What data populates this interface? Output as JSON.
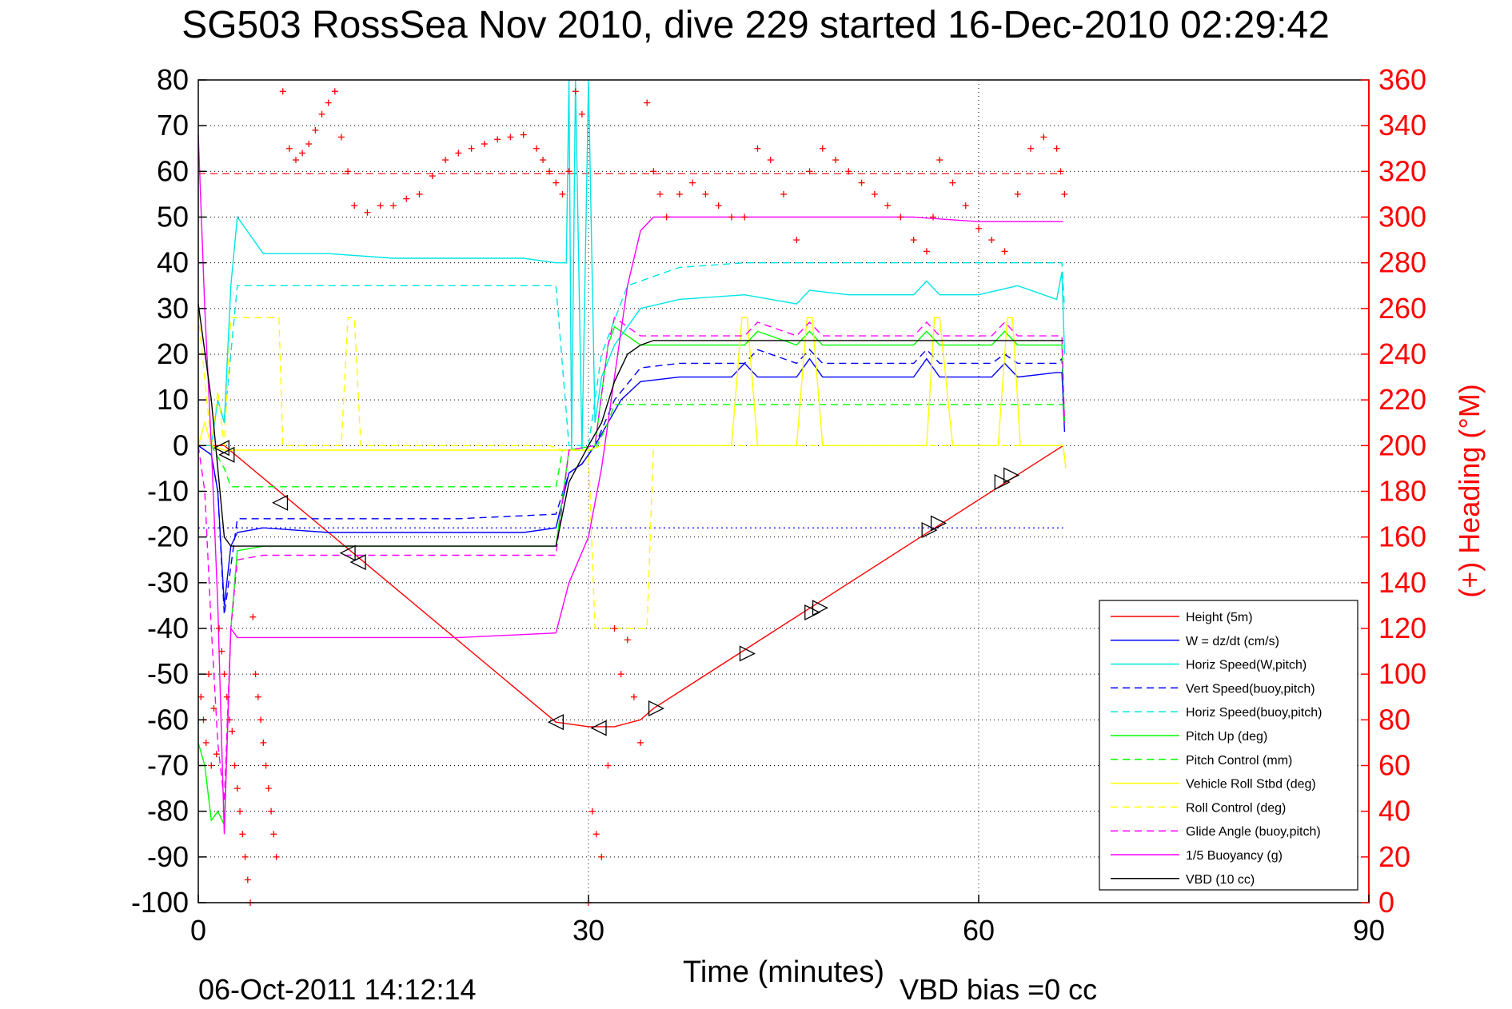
{
  "chart_data": {
    "type": "line",
    "title": "SG503 RossSea Nov 2010, dive 229 started 16-Dec-2010 02:29:42",
    "xlabel": "Time (minutes)",
    "ylabel": "",
    "y2label": "(+) Heading (°M)",
    "xlim": [
      0,
      90
    ],
    "ylim": [
      -100,
      80
    ],
    "y2lim": [
      0,
      360
    ],
    "xticks": [
      "0",
      "30",
      "60",
      "90"
    ],
    "yticks": [
      "80",
      "70",
      "60",
      "50",
      "40",
      "30",
      "20",
      "10",
      "0",
      "-10",
      "-20",
      "-30",
      "-40",
      "-50",
      "-60",
      "-70",
      "-80",
      "-90",
      "-100"
    ],
    "y2ticks": [
      "360",
      "340",
      "320",
      "300",
      "280",
      "260",
      "240",
      "220",
      "200",
      "180",
      "160",
      "140",
      "120",
      "100",
      "80",
      "60",
      "40",
      "20",
      "0"
    ],
    "grid": true,
    "legend_position": "bottom-right",
    "footer_date": "06-Oct-2011 14:12:14",
    "footer_note": "VBD bias =0 cc",
    "series": [
      {
        "name": "Height (5m)",
        "color": "#ff0000",
        "dash": "solid",
        "x": [
          0,
          2,
          27.5,
          30,
          32,
          34,
          35,
          66.5
        ],
        "y": [
          0,
          0,
          -60.5,
          -61.5,
          -61.5,
          -60,
          -57.5,
          0
        ]
      },
      {
        "name": "W = dz/dt (cm/s)",
        "color": "#0000ff",
        "dash": "solid",
        "x": [
          0,
          1,
          1.5,
          2,
          2.5,
          3,
          5,
          10,
          15,
          20,
          25,
          27.5,
          28.5,
          29.5,
          30.5,
          31.5,
          32.5,
          34,
          37,
          41,
          42,
          43,
          46,
          47,
          48,
          55,
          56,
          57,
          61,
          62,
          63,
          66,
          66.4,
          66.6
        ],
        "y": [
          0,
          -2,
          -10,
          -35,
          -22,
          -19,
          -18,
          -19,
          -19,
          -19,
          -19,
          -18,
          -6,
          -4,
          0,
          5,
          10,
          14,
          15,
          15,
          18,
          15,
          15,
          19,
          15,
          15,
          19,
          15,
          15,
          18,
          15,
          16,
          16,
          3
        ]
      },
      {
        "name": "Horiz Speed(W,pitch)",
        "color": "#00e5e5",
        "dash": "solid",
        "x": [
          0,
          1,
          1.5,
          2,
          2.5,
          3,
          5,
          10,
          15,
          20,
          25,
          27.5,
          28.3,
          28.5,
          28.7,
          29,
          29.5,
          30,
          30.5,
          31,
          32,
          34,
          37,
          42,
          46,
          47,
          50,
          55,
          56,
          57,
          60,
          63,
          66,
          66.4,
          66.6
        ],
        "y": [
          0,
          0,
          10,
          5,
          35,
          50,
          42,
          42,
          41,
          41,
          41,
          40,
          40,
          90,
          -1,
          90,
          -1,
          90,
          5,
          15,
          22,
          30,
          32,
          33,
          31,
          34,
          33,
          33,
          36,
          33,
          33,
          35,
          32,
          38,
          20
        ]
      },
      {
        "name": "Vert Speed(buoy,pitch)",
        "color": "#0000ff",
        "dash": "dash",
        "x": [
          0,
          1,
          1.5,
          2,
          3,
          10,
          20,
          27.5,
          28.5,
          29.5,
          30.5,
          32,
          34,
          37,
          42,
          43,
          46,
          47,
          48,
          55,
          56,
          57,
          61,
          62,
          63,
          66,
          66.4,
          66.6
        ],
        "y": [
          0,
          -2,
          -10,
          -37,
          -16,
          -16,
          -16,
          -15,
          -6,
          -4,
          0,
          10,
          17,
          18,
          18,
          21,
          18,
          21,
          18,
          18,
          21,
          18,
          18,
          20,
          18,
          18,
          19,
          5
        ]
      },
      {
        "name": "Horiz Speed(buoy,pitch)",
        "color": "#00e5e5",
        "dash": "dash",
        "x": [
          0,
          1,
          1.5,
          2,
          3,
          10,
          20,
          27.5,
          28.5,
          30,
          31,
          33,
          35,
          37,
          42,
          45,
          55,
          60,
          65,
          66.4,
          66.6
        ],
        "y": [
          0,
          0,
          10,
          5,
          35,
          35,
          35,
          35,
          0,
          0,
          20,
          35,
          37,
          39,
          40,
          40,
          40,
          40,
          40,
          40,
          30
        ]
      },
      {
        "name": "Pitch Up (deg)",
        "color": "#00ff00",
        "dash": "solid",
        "x": [
          0,
          0.5,
          1,
          1.5,
          2,
          2.5,
          3,
          5,
          10,
          20,
          27.5,
          28.5,
          30.5,
          31.5,
          32,
          34,
          42,
          43,
          46,
          47,
          48,
          55,
          56,
          57,
          61,
          62,
          63,
          66.4,
          66.6
        ],
        "y": [
          -65,
          -70,
          -82,
          -80,
          -83,
          -40,
          -23,
          -22,
          -22,
          -22,
          -22,
          -1,
          0,
          22,
          26,
          22,
          22,
          25,
          22,
          25,
          22,
          22,
          25,
          22,
          22,
          25,
          22,
          22,
          5
        ]
      },
      {
        "name": "Pitch Control (mm)",
        "color": "#00ff00",
        "dash": "dash",
        "x": [
          0,
          1,
          2,
          2.5,
          27.5,
          28,
          30.5,
          31.5,
          32,
          35,
          66.5
        ],
        "y": [
          0,
          0,
          -5,
          -9,
          -9,
          -1,
          -1,
          5,
          9,
          9,
          9
        ]
      },
      {
        "name": "Vehicle Roll Stbd (deg)",
        "color": "#ffff00",
        "dash": "solid",
        "x": [
          0,
          0.5,
          1,
          2,
          3,
          5,
          10,
          20,
          27.5,
          30,
          31,
          35,
          41,
          41.8,
          42.2,
          43,
          46,
          46.8,
          47.2,
          48,
          56,
          56.6,
          57,
          58,
          61.5,
          62.2,
          62.6,
          63.2,
          66.5,
          66.7
        ],
        "y": [
          0,
          5,
          0,
          -1,
          -1,
          -1,
          -1,
          -1,
          -1,
          -1,
          0,
          0,
          0,
          28,
          28,
          0,
          0,
          28,
          28,
          0,
          0,
          28,
          28,
          0,
          0,
          28,
          28,
          0,
          0,
          -5
        ]
      },
      {
        "name": "Roll Control (deg)",
        "color": "#ffff00",
        "dash": "dash",
        "x": [
          0,
          1,
          1.5,
          2,
          2.5,
          6.2,
          6.5,
          11,
          11.5,
          12,
          12.5,
          27,
          28,
          30,
          30.5,
          34.5,
          35,
          66.5
        ],
        "y": [
          29,
          0,
          12,
          0,
          28,
          28,
          0,
          0,
          28,
          28,
          0,
          0,
          -1,
          -1,
          -40,
          -40,
          0,
          0
        ]
      },
      {
        "name": "Glide Angle (buoy,pitch)",
        "color": "#ff00ff",
        "dash": "dash",
        "x": [
          0,
          0.5,
          1,
          1.5,
          2,
          2.5,
          3,
          5,
          10,
          20,
          27.5,
          28.5,
          30.5,
          31.5,
          32,
          34,
          42,
          43,
          46,
          47,
          48,
          55,
          56,
          57,
          61,
          62,
          63,
          66.4,
          66.6
        ],
        "y": [
          0,
          -10,
          -40,
          -65,
          -78,
          -40,
          -25,
          -24,
          -24,
          -24,
          -24,
          -1,
          0,
          22,
          28,
          24,
          24,
          27,
          24,
          27,
          24,
          24,
          27,
          24,
          24,
          27,
          24,
          24,
          5
        ]
      },
      {
        "name": "1/5 Buoyancy (g)",
        "color": "#ff00ff",
        "dash": "solid",
        "x": [
          0,
          0.5,
          1,
          1.5,
          2,
          2.5,
          3,
          10,
          20,
          27.5,
          28.5,
          30,
          31,
          32,
          33,
          34,
          35,
          45,
          55,
          60,
          66.5
        ],
        "y": [
          68,
          30,
          0,
          -35,
          -85,
          -40,
          -42,
          -42,
          -42,
          -41,
          -30,
          -20,
          -5,
          15,
          35,
          47,
          50,
          50,
          50,
          49,
          49
        ]
      },
      {
        "name": "VBD (10 cc)",
        "color": "#000000",
        "dash": "solid",
        "x": [
          0,
          1,
          2,
          2.5,
          27.5,
          28.5,
          30,
          31,
          32,
          33,
          34,
          35,
          66.5
        ],
        "y": [
          31,
          10,
          -20,
          -22,
          -22,
          -8,
          0,
          5,
          14,
          20,
          22,
          23,
          23
        ]
      }
    ],
    "reference_lines": [
      {
        "color": "#ff0000",
        "dash": "dash",
        "y2": 319
      },
      {
        "color": "#0000ff",
        "dash": "dot",
        "y": -18
      }
    ],
    "heading_points_y2": {
      "color": "#ff0000",
      "marker": "+",
      "x": [
        0.2,
        0.4,
        0.6,
        0.8,
        1.0,
        1.2,
        1.4,
        1.6,
        1.8,
        2.0,
        2.2,
        2.4,
        2.6,
        2.8,
        3.0,
        3.2,
        3.4,
        3.6,
        3.8,
        4.0,
        4.2,
        4.4,
        4.6,
        4.8,
        5.0,
        5.2,
        5.4,
        5.6,
        5.8,
        6.0,
        6.5,
        7.0,
        7.5,
        8.0,
        8.5,
        9.0,
        9.5,
        10.0,
        10.5,
        11.0,
        11.5,
        12.0,
        13,
        14,
        15,
        16,
        17,
        18,
        19,
        20,
        21,
        22,
        23,
        24,
        25,
        26,
        26.5,
        27,
        27.5,
        28,
        28.5,
        29,
        29.5,
        30,
        30.3,
        30.6,
        31,
        31.5,
        32,
        32.5,
        33,
        33.5,
        34,
        34.5,
        35,
        35.5,
        36,
        37,
        38,
        39,
        40,
        41,
        42,
        43,
        44,
        45,
        46,
        47,
        48,
        49,
        50,
        51,
        52,
        53,
        54,
        55,
        56,
        56.5,
        57,
        58,
        59,
        60,
        61,
        62,
        63,
        64,
        65,
        66,
        66.3,
        66.6
      ],
      "y": [
        90,
        80,
        70,
        100,
        60,
        85,
        65,
        120,
        110,
        100,
        90,
        80,
        75,
        60,
        50,
        40,
        30,
        20,
        10,
        0,
        125,
        100,
        90,
        80,
        70,
        60,
        50,
        40,
        30,
        20,
        355,
        330,
        325,
        328,
        332,
        338,
        345,
        350,
        355,
        335,
        320,
        305,
        302,
        305,
        305,
        308,
        310,
        318,
        325,
        328,
        330,
        332,
        334,
        335,
        336,
        330,
        325,
        320,
        315,
        310,
        320,
        355,
        345,
        0,
        40,
        30,
        20,
        60,
        120,
        100,
        115,
        90,
        70,
        350,
        320,
        310,
        300,
        310,
        315,
        310,
        305,
        300,
        300,
        330,
        325,
        310,
        290,
        320,
        330,
        325,
        320,
        315,
        310,
        305,
        300,
        290,
        285,
        300,
        325,
        315,
        305,
        295,
        290,
        285,
        310,
        330,
        335,
        330,
        320,
        310
      ]
    },
    "triangle_markers": [
      {
        "x": 1.8,
        "y": -0.5,
        "dir": "left"
      },
      {
        "x": 2.2,
        "y": -2,
        "dir": "left"
      },
      {
        "x": 6.3,
        "y": -12.5,
        "dir": "left"
      },
      {
        "x": 11.5,
        "y": -23.5,
        "dir": "left"
      },
      {
        "x": 12.3,
        "y": -25.5,
        "dir": "left"
      },
      {
        "x": 27.5,
        "y": -60.5,
        "dir": "left"
      },
      {
        "x": 30.8,
        "y": -61.8,
        "dir": "left"
      },
      {
        "x": 35.2,
        "y": -57.5,
        "dir": "right"
      },
      {
        "x": 42.2,
        "y": -45.5,
        "dir": "right"
      },
      {
        "x": 47.2,
        "y": -36.5,
        "dir": "right"
      },
      {
        "x": 47.8,
        "y": -35.5,
        "dir": "right"
      },
      {
        "x": 56.2,
        "y": -18.5,
        "dir": "right"
      },
      {
        "x": 56.9,
        "y": -17,
        "dir": "right"
      },
      {
        "x": 61.8,
        "y": -8,
        "dir": "right"
      },
      {
        "x": 62.5,
        "y": -6.5,
        "dir": "right"
      }
    ]
  }
}
